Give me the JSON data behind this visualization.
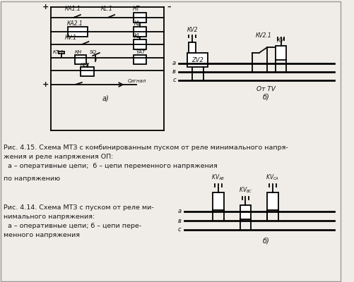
{
  "background_color": "#f0ede8",
  "caption1": "Рис. 4.15. Схема МТЗ с комбинированным пуском от реле минимального напря-",
  "caption1b": "жения и реле напряжения ОП:",
  "caption1c": "  а – оперативные цепи;  б – цепи переменного напряжения",
  "caption_partial": "по напряжению",
  "caption2": "Рис. 4.14. Схема МТЗ с пуском от реле ми-",
  "caption2b": "нимального напряжения:",
  "caption2c": "  а – оперативные цепи; б – цепи пере-",
  "caption2d": "менного напряжения",
  "text_color": "#1a1a1a",
  "diagram_color": "#111111"
}
